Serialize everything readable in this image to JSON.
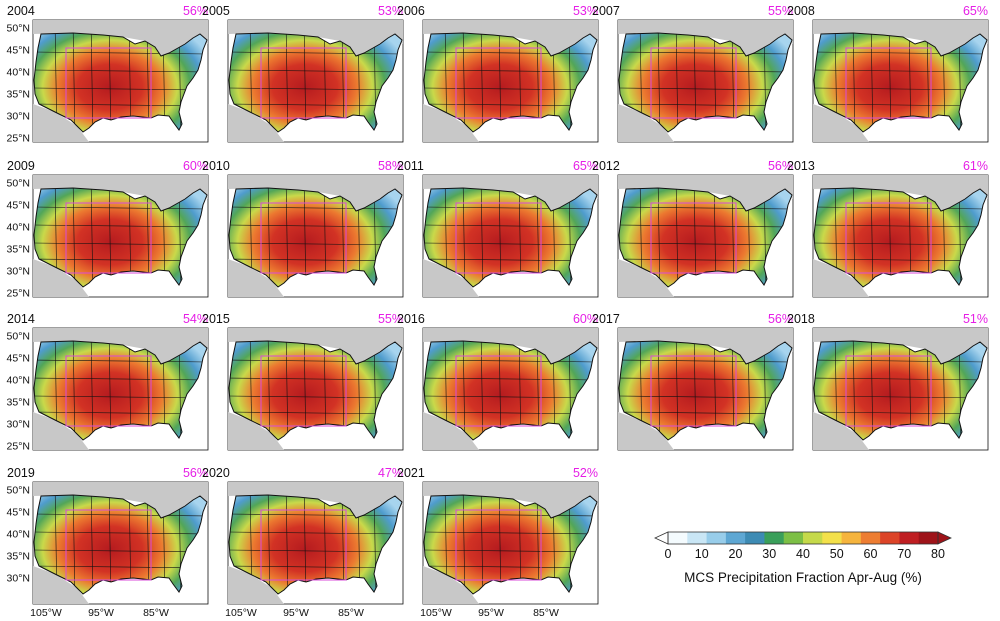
{
  "panels": [
    {
      "year": "2004",
      "pct": "56%"
    },
    {
      "year": "2005",
      "pct": "53%"
    },
    {
      "year": "2006",
      "pct": "53%"
    },
    {
      "year": "2007",
      "pct": "55%"
    },
    {
      "year": "2008",
      "pct": "65%"
    },
    {
      "year": "2009",
      "pct": "60%"
    },
    {
      "year": "2010",
      "pct": "58%"
    },
    {
      "year": "2011",
      "pct": "65%"
    },
    {
      "year": "2012",
      "pct": "56%"
    },
    {
      "year": "2013",
      "pct": "61%"
    },
    {
      "year": "2014",
      "pct": "54%"
    },
    {
      "year": "2015",
      "pct": "55%"
    },
    {
      "year": "2016",
      "pct": "60%"
    },
    {
      "year": "2017",
      "pct": "56%"
    },
    {
      "year": "2018",
      "pct": "51%"
    },
    {
      "year": "2019",
      "pct": "56%"
    },
    {
      "year": "2020",
      "pct": "47%"
    },
    {
      "year": "2021",
      "pct": "52%"
    }
  ],
  "lat_ticks": [
    "50°N",
    "45°N",
    "40°N",
    "35°N",
    "30°N",
    "25°N"
  ],
  "lon_ticks": [
    "105°W",
    "95°W",
    "85°W"
  ],
  "colorbar": {
    "title": "MCS Precipitation Fraction Apr-Aug (%)",
    "tick_labels": [
      "0",
      "10",
      "20",
      "30",
      "40",
      "50",
      "60",
      "70",
      "80"
    ],
    "colors": [
      "#f4fbfe",
      "#c9e6f5",
      "#98cdea",
      "#5ea7d3",
      "#3d8bb4",
      "#3a9f5a",
      "#7cbf45",
      "#c5d94a",
      "#f3e04a",
      "#f5b43d",
      "#ed7d32",
      "#dc4428",
      "#bf1e22",
      "#9e1319"
    ]
  },
  "styles": {
    "pct_color": "#e61ee6",
    "region_outline_color": "#d94ad9",
    "land_gray": "#c8c8c8",
    "ocean": "#ffffff",
    "border_color": "#111111"
  }
}
